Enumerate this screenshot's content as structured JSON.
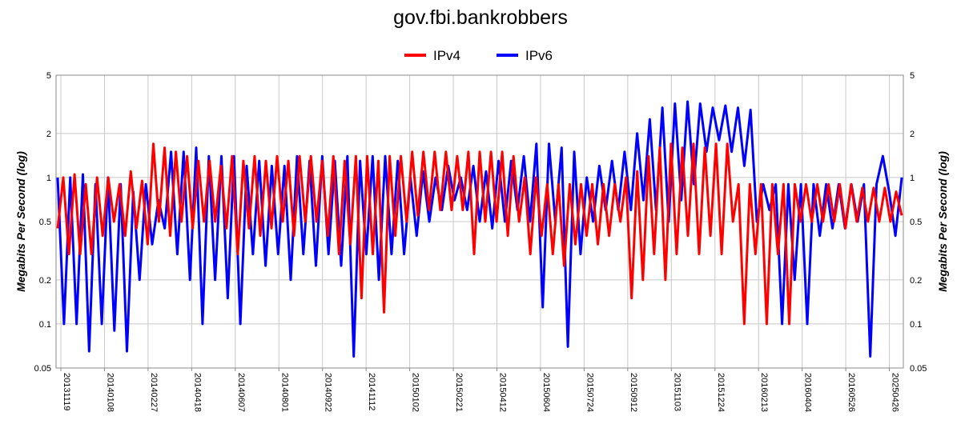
{
  "chart_data": {
    "type": "line",
    "title": "gov.fbi.bankrobbers",
    "ylabel": "Megabits Per Second (log)",
    "xlabel": "",
    "y_scale": "log",
    "ylim": [
      0.05,
      5
    ],
    "y_ticks": [
      "0.05",
      "0.1",
      "0.2",
      "0.5",
      "1",
      "2",
      "5"
    ],
    "x_ticks": [
      "20131119",
      "20140108",
      "20140227",
      "20140418",
      "20140607",
      "20140801",
      "20140922",
      "20141112",
      "20150102",
      "20150221",
      "20150412",
      "20150604",
      "20150724",
      "20150912",
      "20151103",
      "20151224",
      "20160213",
      "20160404",
      "20160526",
      "20250426"
    ],
    "grid": true,
    "legend_position": "top-center",
    "series": [
      {
        "name": "IPv4",
        "color": "#ff0000",
        "values": [
          0.45,
          1.0,
          0.3,
          1.05,
          0.3,
          0.9,
          0.3,
          1.0,
          0.4,
          1.0,
          0.5,
          0.9,
          0.4,
          1.1,
          0.45,
          0.95,
          0.35,
          1.7,
          0.5,
          1.6,
          0.4,
          1.5,
          0.5,
          1.4,
          0.45,
          1.3,
          0.5,
          1.3,
          0.5,
          1.2,
          0.45,
          1.4,
          0.3,
          1.3,
          0.45,
          1.4,
          0.4,
          1.3,
          0.45,
          1.4,
          0.5,
          1.3,
          0.4,
          1.4,
          0.5,
          1.4,
          0.5,
          1.3,
          0.4,
          1.4,
          0.3,
          1.3,
          0.35,
          1.4,
          0.15,
          1.4,
          0.3,
          1.3,
          0.12,
          1.4,
          0.4,
          1.4,
          0.5,
          1.5,
          0.55,
          1.5,
          0.6,
          1.5,
          0.6,
          1.5,
          0.6,
          1.4,
          0.6,
          1.5,
          0.3,
          1.5,
          0.5,
          1.5,
          0.5,
          1.5,
          0.4,
          1.4,
          0.5,
          1.0,
          0.3,
          1.0,
          0.4,
          0.9,
          0.3,
          0.9,
          0.25,
          0.9,
          0.35,
          0.9,
          0.4,
          0.9,
          0.35,
          0.9,
          0.4,
          0.9,
          0.5,
          1.0,
          0.15,
          1.1,
          0.2,
          1.4,
          0.3,
          1.6,
          0.2,
          1.7,
          0.3,
          1.6,
          0.4,
          1.7,
          0.3,
          1.6,
          0.4,
          1.7,
          0.3,
          1.7,
          0.5,
          0.9,
          0.1,
          0.9,
          0.3,
          0.9,
          0.1,
          0.9,
          0.3,
          0.9,
          0.1,
          0.9,
          0.5,
          0.9,
          0.5,
          0.9,
          0.5,
          0.9,
          0.5,
          0.9,
          0.45,
          0.9,
          0.5,
          0.85,
          0.5,
          0.85,
          0.5,
          0.85,
          0.5,
          0.8,
          0.55
        ]
      },
      {
        "name": "IPv6",
        "color": "#0000ff",
        "values": [
          1.0,
          0.1,
          1.0,
          0.1,
          1.05,
          0.065,
          0.9,
          0.1,
          1.0,
          0.09,
          0.9,
          0.065,
          0.8,
          0.2,
          0.9,
          0.35,
          0.7,
          0.45,
          1.5,
          0.3,
          1.5,
          0.2,
          1.6,
          0.1,
          1.4,
          0.2,
          1.4,
          0.15,
          1.4,
          0.1,
          1.2,
          0.3,
          1.3,
          0.25,
          1.2,
          0.3,
          1.2,
          0.2,
          1.4,
          0.3,
          1.3,
          0.25,
          1.4,
          0.3,
          1.3,
          0.25,
          1.4,
          0.06,
          1.3,
          0.3,
          1.4,
          0.2,
          1.4,
          0.3,
          1.3,
          0.3,
          1.0,
          0.4,
          1.1,
          0.5,
          1.0,
          0.6,
          1.2,
          0.7,
          1.0,
          0.6,
          1.2,
          0.5,
          1.1,
          0.45,
          1.3,
          0.5,
          1.3,
          0.6,
          1.4,
          0.5,
          1.7,
          0.13,
          1.7,
          0.5,
          1.6,
          0.07,
          1.5,
          0.3,
          1.0,
          0.5,
          1.2,
          0.6,
          1.3,
          0.6,
          1.5,
          0.6,
          2.0,
          0.7,
          2.5,
          0.6,
          3.0,
          0.5,
          3.2,
          0.7,
          3.3,
          0.9,
          3.2,
          1.5,
          3.0,
          1.8,
          3.1,
          1.5,
          3.0,
          1.2,
          2.9,
          0.5,
          0.9,
          0.6,
          0.9,
          0.1,
          0.9,
          0.2,
          0.9,
          0.1,
          0.9,
          0.4,
          0.9,
          0.45,
          0.9,
          0.45,
          0.9,
          0.5,
          0.9,
          0.06,
          0.9,
          1.4,
          0.8,
          0.4,
          1.0
        ]
      }
    ]
  }
}
